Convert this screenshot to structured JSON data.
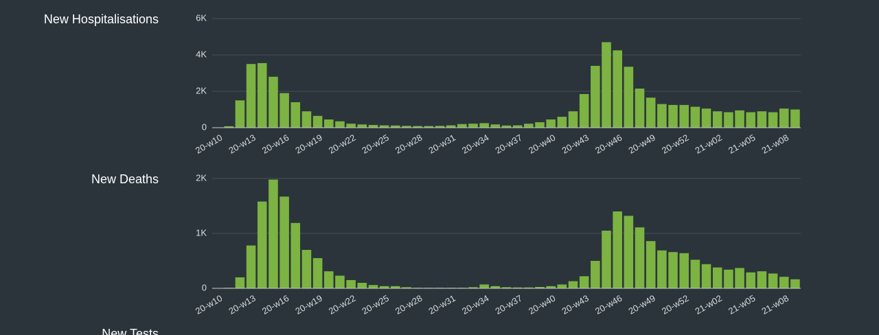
{
  "chart_data": [
    {
      "type": "bar",
      "title": "New Hospitalisations",
      "color": "#7cb342",
      "categories": [
        "20-w10",
        null,
        null,
        "20-w13",
        null,
        null,
        "20-w16",
        null,
        null,
        "20-w19",
        null,
        null,
        "20-w22",
        null,
        null,
        "20-w25",
        null,
        null,
        "20-w28",
        null,
        null,
        "20-w31",
        null,
        null,
        "20-w34",
        null,
        null,
        "20-w37",
        null,
        null,
        "20-w40",
        null,
        null,
        "20-w43",
        null,
        null,
        "20-w46",
        null,
        null,
        "20-w49",
        null,
        null,
        "20-w52",
        null,
        null,
        "21-w02",
        null,
        null,
        "21-w05",
        null,
        null,
        "21-w08",
        null
      ],
      "values": [
        20,
        80,
        1500,
        3500,
        3550,
        2800,
        1900,
        1400,
        900,
        650,
        450,
        350,
        220,
        180,
        150,
        130,
        120,
        100,
        90,
        90,
        100,
        130,
        200,
        220,
        250,
        180,
        120,
        130,
        220,
        300,
        450,
        600,
        900,
        1850,
        3400,
        4700,
        4250,
        3350,
        2150,
        1650,
        1300,
        1250,
        1250,
        1150,
        1050,
        900,
        850,
        950,
        850,
        900,
        850,
        1050,
        1000
      ],
      "ylim": [
        0,
        6000
      ],
      "yticks": [
        0,
        {
          "value": 2000,
          "label": "2K"
        },
        {
          "value": 4000,
          "label": "4K"
        },
        {
          "value": 6000,
          "label": "6K"
        }
      ],
      "grid": true
    },
    {
      "type": "bar",
      "title": "New Deaths",
      "color": "#7cb342",
      "categories": [
        "20-w10",
        null,
        null,
        "20-w13",
        null,
        null,
        "20-w16",
        null,
        null,
        "20-w19",
        null,
        null,
        "20-w22",
        null,
        null,
        "20-w25",
        null,
        null,
        "20-w28",
        null,
        null,
        "20-w31",
        null,
        null,
        "20-w34",
        null,
        null,
        "20-w37",
        null,
        null,
        "20-w40",
        null,
        null,
        "20-w43",
        null,
        null,
        "20-w46",
        null,
        null,
        "20-w49",
        null,
        null,
        "20-w52",
        null,
        null,
        "21-w02",
        null,
        null,
        "21-w05",
        null,
        null,
        "21-w08",
        null
      ],
      "values": [
        5,
        10,
        200,
        780,
        1580,
        1980,
        1670,
        1190,
        700,
        550,
        310,
        230,
        150,
        100,
        60,
        40,
        40,
        20,
        10,
        10,
        10,
        10,
        10,
        20,
        70,
        40,
        20,
        15,
        15,
        25,
        40,
        70,
        130,
        220,
        500,
        1050,
        1400,
        1320,
        1110,
        860,
        690,
        660,
        640,
        520,
        440,
        380,
        340,
        370,
        290,
        310,
        270,
        210,
        165
      ],
      "ylim": [
        0,
        2000
      ],
      "yticks": [
        0,
        {
          "value": 1000,
          "label": "1K"
        },
        {
          "value": 2000,
          "label": "2K"
        }
      ],
      "grid": true
    }
  ],
  "next_section_title": "New Tests"
}
